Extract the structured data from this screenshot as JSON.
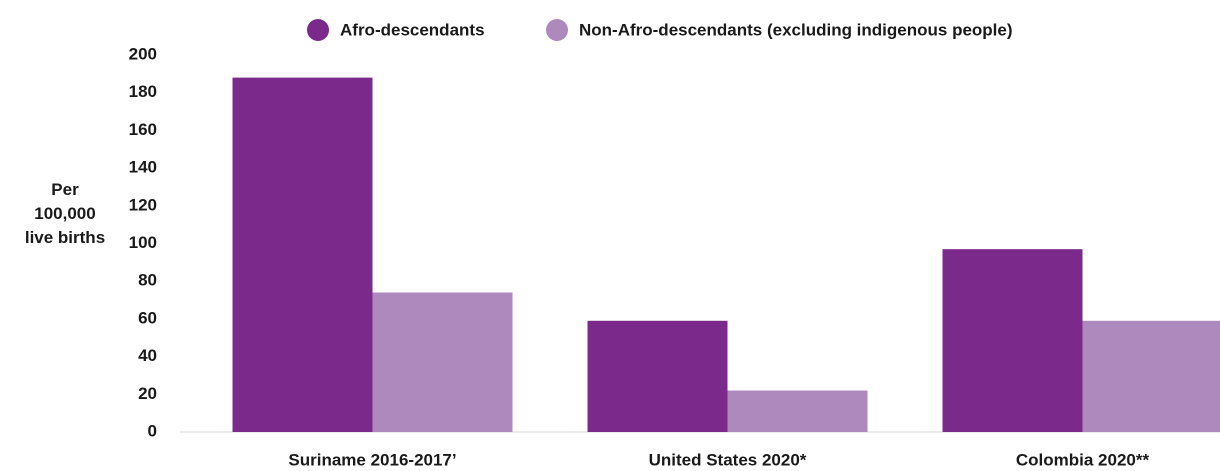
{
  "chart_data": {
    "type": "bar",
    "y_label": "Per 100,000 live births",
    "categories": [
      "Suriname 2016-2017’",
      "United States 2020*",
      "Colombia 2020**"
    ],
    "series": [
      {
        "name": "Afro-descendants",
        "color": "#7b2a8c",
        "values": [
          188,
          59,
          97
        ]
      },
      {
        "name": "Non-Afro-descendants (excluding indigenous people)",
        "color": "#ad89bd",
        "values": [
          74,
          22,
          59
        ]
      }
    ],
    "ylim": [
      0,
      200
    ],
    "yticks": [
      0,
      20,
      40,
      60,
      80,
      100,
      120,
      140,
      160,
      180,
      200
    ],
    "legend": "top",
    "grid": false
  }
}
